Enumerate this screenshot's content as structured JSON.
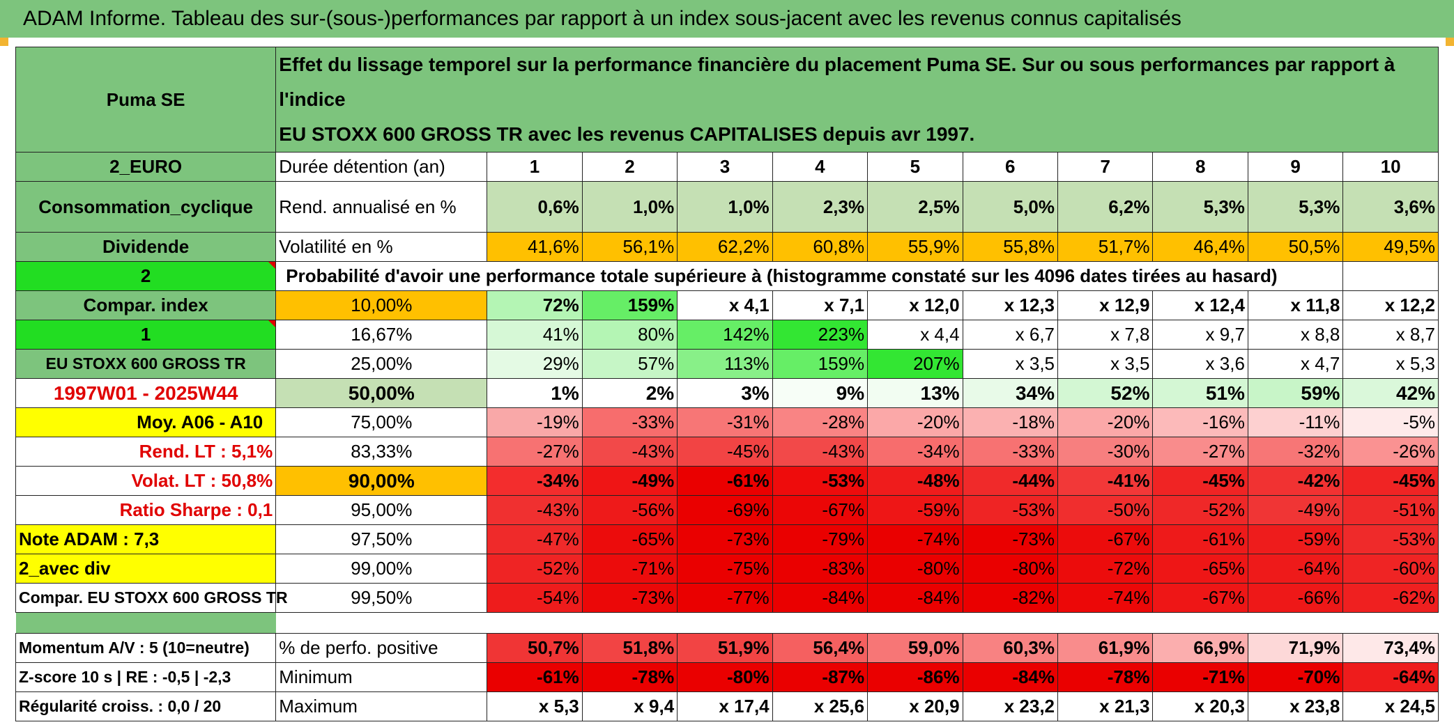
{
  "title": "ADAM Informe. Tableau des sur-(sous-)performances par rapport à un index sous-jacent avec les revenus connus capitalisés",
  "left": {
    "name": "Puma SE",
    "currency": "2_EURO",
    "sector": "Consommation_cyclique",
    "dividend": "Dividende",
    "num2": "2",
    "compar_index": "Compar. index",
    "num1": "1",
    "index_name": "EU STOXX 600 GROSS TR",
    "period": "1997W01 - 2025W44",
    "moy": "Moy. A06 - A10",
    "rend_lt": "Rend. LT :   5,1%",
    "volat_lt": "Volat. LT :   50,8%",
    "sharpe": "Ratio Sharpe :   0,1",
    "note": "Note ADAM : 7,3",
    "avec_div": "2_avec div",
    "compar_full": "Compar. EU STOXX 600 GROSS TR",
    "momentum": "Momentum A/V : 5 (10=neutre)",
    "zscore": "Z-score 10 s | RE : -0,5 | -2,3",
    "regularite": "Régularité croiss. : 0,0 / 20"
  },
  "header": {
    "line1": "Effet du lissage temporel sur la performance financière du placement Puma SE. Sur ou sous performances par rapport à l'indice",
    "line2": "EU STOXX 600 GROSS TR avec les revenus CAPITALISES depuis avr 1997."
  },
  "labels": {
    "duree": "Durée détention (an)",
    "rend": "Rend. annualisé en %",
    "vol": "Volatilité en %",
    "prob": "Probabilité d'avoir une performance totale supérieure à (histogramme constaté sur les 4096 dates tirées au hasard)",
    "pos": "% de perfo. positive",
    "min": "Minimum",
    "max": "Maximum"
  },
  "years": [
    "1",
    "2",
    "3",
    "4",
    "5",
    "6",
    "7",
    "8",
    "9",
    "10"
  ],
  "rend": [
    "0,6%",
    "1,0%",
    "1,0%",
    "2,3%",
    "2,5%",
    "5,0%",
    "6,2%",
    "5,3%",
    "5,3%",
    "3,6%"
  ],
  "vol": [
    "41,6%",
    "56,1%",
    "62,2%",
    "60,8%",
    "55,9%",
    "55,8%",
    "51,7%",
    "46,4%",
    "50,5%",
    "49,5%"
  ],
  "quantiles": [
    {
      "q": "10,00%",
      "v": [
        "72%",
        "159%",
        "x 4,1",
        "x 7,1",
        "x 12,0",
        "x 12,3",
        "x 12,9",
        "x 12,4",
        "x 11,8",
        "x 12,2"
      ]
    },
    {
      "q": "16,67%",
      "v": [
        "41%",
        "80%",
        "142%",
        "223%",
        "x 4,4",
        "x 6,7",
        "x 7,8",
        "x 9,7",
        "x 8,8",
        "x 8,7"
      ]
    },
    {
      "q": "25,00%",
      "v": [
        "29%",
        "57%",
        "113%",
        "159%",
        "207%",
        "x 3,5",
        "x 3,5",
        "x 3,6",
        "x 4,7",
        "x 5,3"
      ]
    },
    {
      "q": "50,00%",
      "v": [
        "1%",
        "2%",
        "3%",
        "9%",
        "13%",
        "34%",
        "52%",
        "51%",
        "59%",
        "42%"
      ]
    },
    {
      "q": "75,00%",
      "v": [
        "-19%",
        "-33%",
        "-31%",
        "-28%",
        "-20%",
        "-18%",
        "-20%",
        "-16%",
        "-11%",
        "-5%"
      ]
    },
    {
      "q": "83,33%",
      "v": [
        "-27%",
        "-43%",
        "-45%",
        "-43%",
        "-34%",
        "-33%",
        "-30%",
        "-27%",
        "-32%",
        "-26%"
      ]
    },
    {
      "q": "90,00%",
      "v": [
        "-34%",
        "-49%",
        "-61%",
        "-53%",
        "-48%",
        "-44%",
        "-41%",
        "-45%",
        "-42%",
        "-45%"
      ]
    },
    {
      "q": "95,00%",
      "v": [
        "-43%",
        "-56%",
        "-69%",
        "-67%",
        "-59%",
        "-53%",
        "-50%",
        "-52%",
        "-49%",
        "-51%"
      ]
    },
    {
      "q": "97,50%",
      "v": [
        "-47%",
        "-65%",
        "-73%",
        "-79%",
        "-74%",
        "-73%",
        "-67%",
        "-61%",
        "-59%",
        "-53%"
      ]
    },
    {
      "q": "99,00%",
      "v": [
        "-52%",
        "-71%",
        "-75%",
        "-83%",
        "-80%",
        "-80%",
        "-72%",
        "-65%",
        "-64%",
        "-60%"
      ]
    },
    {
      "q": "99,50%",
      "v": [
        "-54%",
        "-73%",
        "-77%",
        "-84%",
        "-84%",
        "-82%",
        "-74%",
        "-67%",
        "-66%",
        "-62%"
      ]
    }
  ],
  "positive": [
    "50,7%",
    "51,8%",
    "51,9%",
    "56,4%",
    "59,0%",
    "60,3%",
    "61,9%",
    "66,9%",
    "71,9%",
    "73,4%"
  ],
  "minimum": [
    "-61%",
    "-78%",
    "-80%",
    "-87%",
    "-86%",
    "-84%",
    "-78%",
    "-71%",
    "-70%",
    "-64%"
  ],
  "maximum": [
    "x 5,3",
    "x 9,4",
    "x 17,4",
    "x 25,6",
    "x 20,9",
    "x 23,2",
    "x 21,3",
    "x 20,3",
    "x 23,8",
    "x 24,5"
  ],
  "colors": {
    "green": "#7dc47d",
    "light_green": "#c5e0b4",
    "bright_green": "#22dd22",
    "orange": "#ffc000",
    "yellow": "#ffff00",
    "red_text": "#e00000",
    "q_row_colors": [
      [
        "#b4f5b4",
        "#66ee66",
        "#ffffff",
        "#ffffff",
        "#ffffff",
        "#ffffff",
        "#ffffff",
        "#ffffff",
        "#ffffff",
        "#ffffff"
      ],
      [
        "#d6f8d6",
        "#b4f5b4",
        "#66ee66",
        "#33e633",
        "#ffffff",
        "#ffffff",
        "#ffffff",
        "#ffffff",
        "#ffffff",
        "#ffffff"
      ],
      [
        "#e4fae4",
        "#c6f6c6",
        "#88f088",
        "#66ee66",
        "#33e633",
        "#ffffff",
        "#ffffff",
        "#ffffff",
        "#ffffff",
        "#ffffff"
      ],
      [
        "#ffffff",
        "#ffffff",
        "#ffffff",
        "#f7fef7",
        "#f2fdf2",
        "#e8fae8",
        "#d3f7d3",
        "#d4f7d4",
        "#c8f5c8",
        "#daf8da"
      ],
      [
        "#f9a8a8",
        "#f76d6d",
        "#f77676",
        "#f98484",
        "#fba8a8",
        "#fbb1b1",
        "#fba8a8",
        "#fcbaba",
        "#fdd0d0",
        "#feeaea"
      ],
      [
        "#f77272",
        "#f24949",
        "#f24444",
        "#f24949",
        "#f76d6d",
        "#f77272",
        "#f77f7f",
        "#f98c8c",
        "#f77676",
        "#fa9292"
      ],
      [
        "#f32d2d",
        "#ef1515",
        "#ea0000",
        "#ee0c0c",
        "#ef1c1c",
        "#f02a2a",
        "#f23838",
        "#f02424",
        "#f13232",
        "#f02424"
      ],
      [
        "#f03030",
        "#ee1a1a",
        "#ea0000",
        "#eb0606",
        "#ee1616",
        "#ef2424",
        "#f02e2e",
        "#ef2828",
        "#f03535",
        "#ef2a2a"
      ],
      [
        "#ef2a2a",
        "#ec0c0c",
        "#ea0000",
        "#ea0000",
        "#ea0000",
        "#ea0000",
        "#ec0c0c",
        "#ee1a1a",
        "#ee1c1c",
        "#ef2a2a"
      ],
      [
        "#ef2424",
        "#ec0c0c",
        "#ea0000",
        "#ea0000",
        "#ea0000",
        "#ea0000",
        "#ec0c0c",
        "#ee1616",
        "#ee1a1a",
        "#ef2424"
      ],
      [
        "#ee1c1c",
        "#eb0808",
        "#ea0000",
        "#ea0000",
        "#ea0000",
        "#ea0000",
        "#ec0808",
        "#ee1616",
        "#ee1818",
        "#ef2020"
      ]
    ],
    "pos_colors": [
      "#f03535",
      "#f24444",
      "#f24444",
      "#f56060",
      "#f77676",
      "#f88282",
      "#f98c8c",
      "#fbaeae",
      "#fdd8d8",
      "#fee8e8"
    ],
    "min_colors": [
      "#ea0000",
      "#ea0000",
      "#ea0000",
      "#ea0000",
      "#ea0000",
      "#ea0000",
      "#ea0000",
      "#ea0000",
      "#ea0000",
      "#ee1c1c"
    ]
  }
}
